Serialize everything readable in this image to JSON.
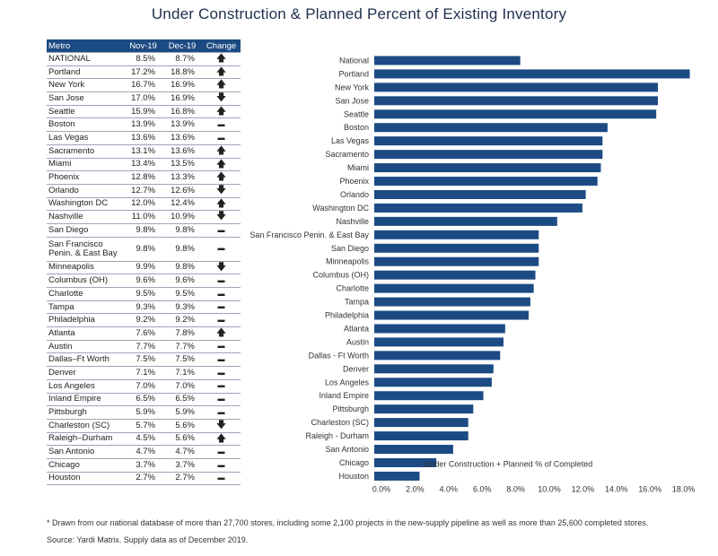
{
  "title": "Under Construction & Planned Percent of Existing Inventory",
  "table": {
    "headers": [
      "Metro",
      "Nov-19",
      "Dec-19",
      "Change"
    ],
    "rows": [
      {
        "metro": "NATIONAL",
        "nov": "8.5%",
        "dec": "8.7%",
        "change": "up"
      },
      {
        "metro": "Portland",
        "nov": "17.2%",
        "dec": "18.8%",
        "change": "up"
      },
      {
        "metro": "New York",
        "nov": "16.7%",
        "dec": "16.9%",
        "change": "up"
      },
      {
        "metro": "San Jose",
        "nov": "17.0%",
        "dec": "16.9%",
        "change": "down"
      },
      {
        "metro": "Seattle",
        "nov": "15.9%",
        "dec": "16.8%",
        "change": "up"
      },
      {
        "metro": "Boston",
        "nov": "13.9%",
        "dec": "13.9%",
        "change": "flat"
      },
      {
        "metro": "Las Vegas",
        "nov": "13.6%",
        "dec": "13.6%",
        "change": "flat"
      },
      {
        "metro": "Sacramento",
        "nov": "13.1%",
        "dec": "13.6%",
        "change": "up"
      },
      {
        "metro": "Miami",
        "nov": "13.4%",
        "dec": "13.5%",
        "change": "up"
      },
      {
        "metro": "Phoenix",
        "nov": "12.8%",
        "dec": "13.3%",
        "change": "up"
      },
      {
        "metro": "Orlando",
        "nov": "12.7%",
        "dec": "12.6%",
        "change": "down"
      },
      {
        "metro": "Washington DC",
        "nov": "12.0%",
        "dec": "12.4%",
        "change": "up"
      },
      {
        "metro": "Nashville",
        "nov": "11.0%",
        "dec": "10.9%",
        "change": "down"
      },
      {
        "metro": "San Diego",
        "nov": "9.8%",
        "dec": "9.8%",
        "change": "flat"
      },
      {
        "metro": "San Francisco Penin. & East Bay",
        "nov": "9.8%",
        "dec": "9.8%",
        "change": "flat"
      },
      {
        "metro": "Minneapolis",
        "nov": "9.9%",
        "dec": "9.8%",
        "change": "down"
      },
      {
        "metro": "Columbus (OH)",
        "nov": "9.6%",
        "dec": "9.6%",
        "change": "flat"
      },
      {
        "metro": "Charlotte",
        "nov": "9.5%",
        "dec": "9.5%",
        "change": "flat"
      },
      {
        "metro": "Tampa",
        "nov": "9.3%",
        "dec": "9.3%",
        "change": "flat"
      },
      {
        "metro": "Philadelphia",
        "nov": "9.2%",
        "dec": "9.2%",
        "change": "flat"
      },
      {
        "metro": "Atlanta",
        "nov": "7.6%",
        "dec": "7.8%",
        "change": "up"
      },
      {
        "metro": "Austin",
        "nov": "7.7%",
        "dec": "7.7%",
        "change": "flat"
      },
      {
        "metro": "Dallas–Ft Worth",
        "nov": "7.5%",
        "dec": "7.5%",
        "change": "flat"
      },
      {
        "metro": "Denver",
        "nov": "7.1%",
        "dec": "7.1%",
        "change": "flat"
      },
      {
        "metro": "Los Angeles",
        "nov": "7.0%",
        "dec": "7.0%",
        "change": "flat"
      },
      {
        "metro": "Inland Empire",
        "nov": "6.5%",
        "dec": "6.5%",
        "change": "flat"
      },
      {
        "metro": "Pittsburgh",
        "nov": "5.9%",
        "dec": "5.9%",
        "change": "flat"
      },
      {
        "metro": "Charleston (SC)",
        "nov": "5.7%",
        "dec": "5.6%",
        "change": "down"
      },
      {
        "metro": "Raleigh–Durham",
        "nov": "4.5%",
        "dec": "5.6%",
        "change": "up"
      },
      {
        "metro": "San Antonio",
        "nov": "4.7%",
        "dec": "4.7%",
        "change": "flat"
      },
      {
        "metro": "Chicago",
        "nov": "3.7%",
        "dec": "3.7%",
        "change": "flat"
      },
      {
        "metro": "Houston",
        "nov": "2.7%",
        "dec": "2.7%",
        "change": "flat"
      }
    ]
  },
  "chart_data": {
    "type": "bar",
    "orientation": "horizontal",
    "title": "",
    "xlabel": "Under Construction + Planned % of Completed",
    "xlim": [
      0,
      19
    ],
    "xticks": [
      0,
      2,
      4,
      6,
      8,
      10,
      12,
      14,
      16,
      18
    ],
    "xtick_labels": [
      "0.0%",
      "2.0%",
      "4.0%",
      "6.0%",
      "8.0%",
      "10.0%",
      "12.0%",
      "14.0%",
      "16.0%",
      "18.0%"
    ],
    "grid": false,
    "categories": [
      "National",
      "Portland",
      "New York",
      "San Jose",
      "Seattle",
      "Boston",
      "Las Vegas",
      "Sacramento",
      "Miami",
      "Phoenix",
      "Orlando",
      "Washington DC",
      "Nashville",
      "San Francisco Penin. & East Bay",
      "San Diego",
      "Minneapolis",
      "Columbus (OH)",
      "Charlotte",
      "Tampa",
      "Philadelphia",
      "Atlanta",
      "Austin",
      "Dallas - Ft Worth",
      "Denver",
      "Los Angeles",
      "Inland Empire",
      "Pittsburgh",
      "Charleston (SC)",
      "Raleigh - Durham",
      "San Antonio",
      "Chicago",
      "Houston"
    ],
    "values": [
      8.7,
      18.8,
      16.9,
      16.9,
      16.8,
      13.9,
      13.6,
      13.6,
      13.5,
      13.3,
      12.6,
      12.4,
      10.9,
      9.8,
      9.8,
      9.8,
      9.6,
      9.5,
      9.3,
      9.2,
      7.8,
      7.7,
      7.5,
      7.1,
      7.0,
      6.5,
      5.9,
      5.6,
      5.6,
      4.7,
      3.7,
      2.7
    ],
    "bar_color": "#1c4b84"
  },
  "footnotes": [
    "* Drawn from our national database of more than 27,700 stores, including some 2,100 projects in the new-supply pipeline as well as more than 25,600 completed stores.",
    "Source: Yardi Matrix. Supply data as of December 2019."
  ]
}
